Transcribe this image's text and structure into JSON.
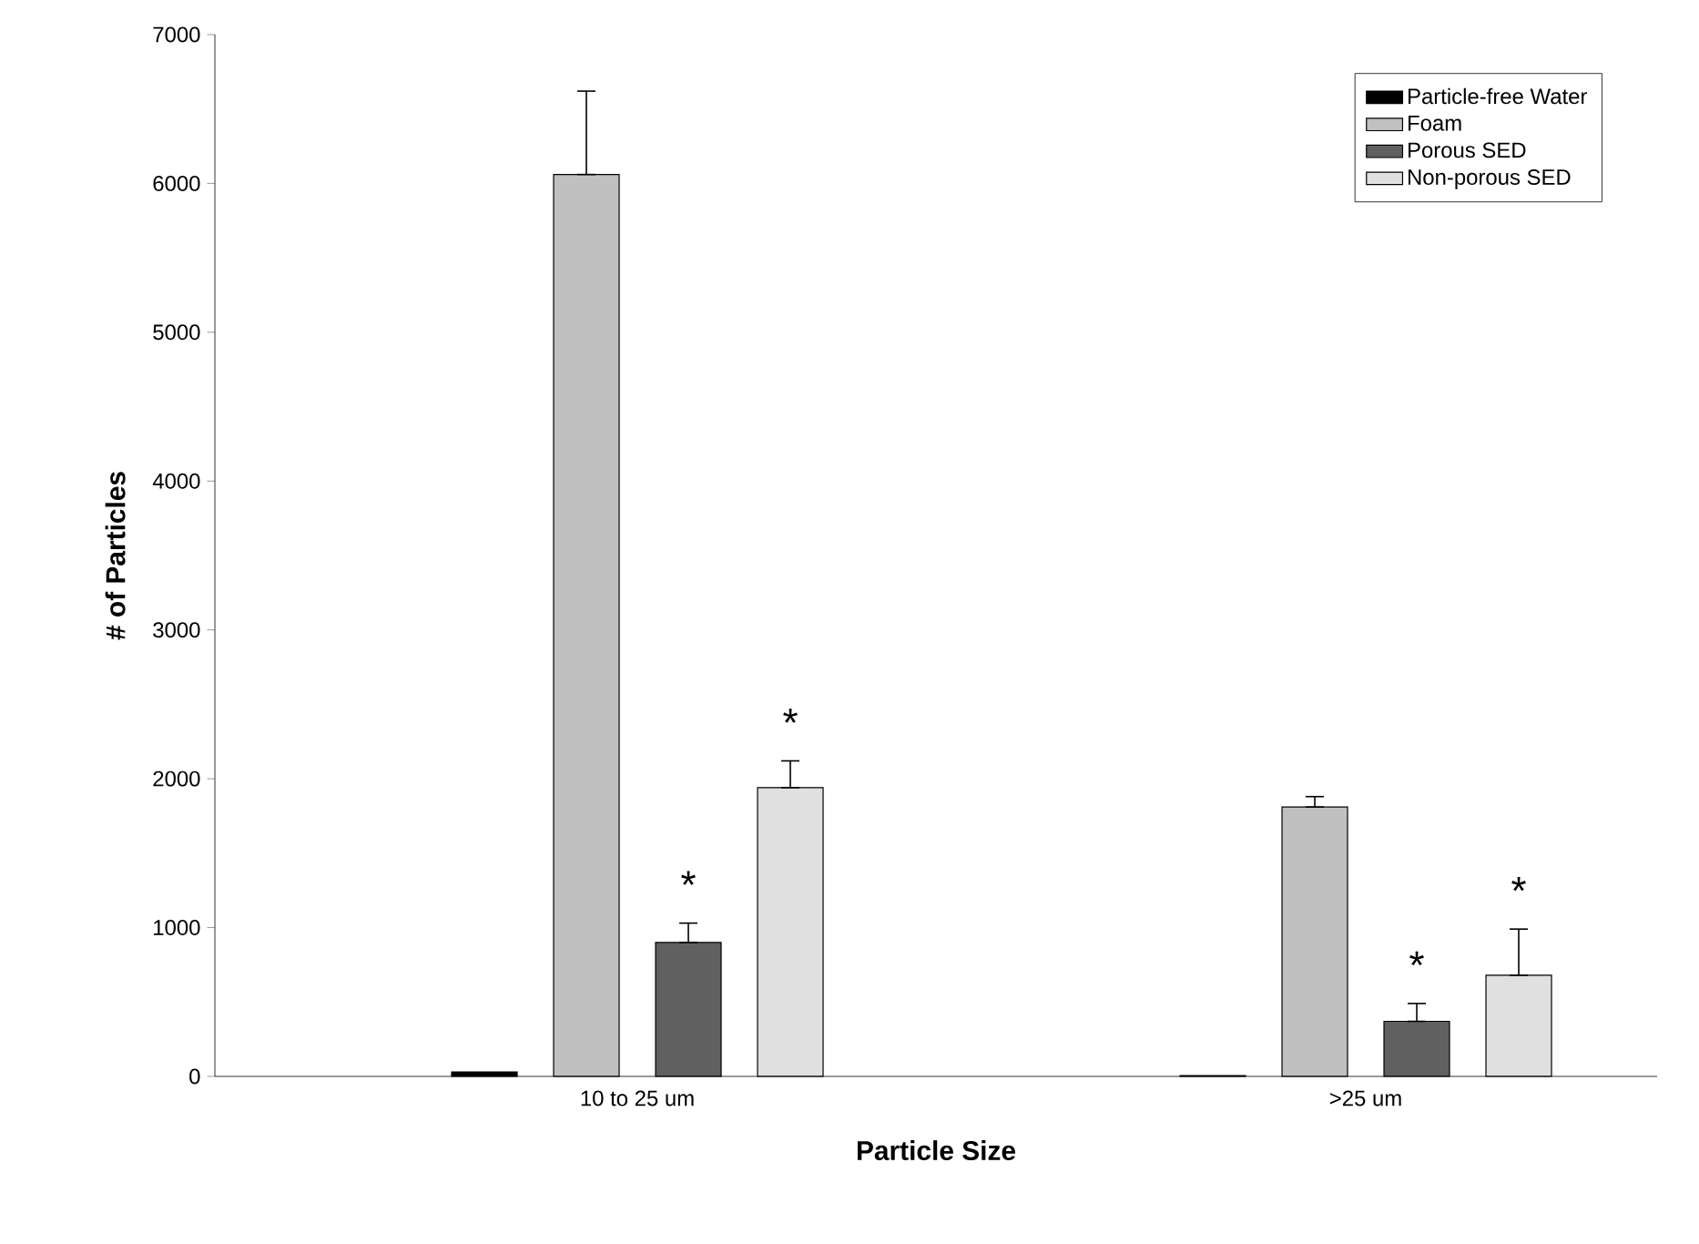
{
  "chart_data": {
    "type": "bar",
    "xlabel": "Particle Size",
    "ylabel": "# of Particles",
    "categories": [
      "10 to 25 um",
      ">25 um"
    ],
    "series": [
      {
        "name": "Particle-free Water",
        "color": "#000000",
        "values": [
          30,
          5
        ]
      },
      {
        "name": "Foam",
        "color": "#c0c0c0",
        "values": [
          6060,
          1810
        ],
        "errors": [
          [
            6060,
            6620
          ],
          [
            1810,
            1880
          ]
        ]
      },
      {
        "name": "Porous SED",
        "color": "#606060",
        "values": [
          900,
          370
        ],
        "errors": [
          [
            900,
            1030
          ],
          [
            370,
            490
          ]
        ]
      },
      {
        "name": "Non-porous SED",
        "color": "#e0e0e0",
        "values": [
          1940,
          680
        ],
        "errors": [
          [
            1940,
            2120
          ],
          [
            680,
            990
          ]
        ]
      }
    ],
    "ylim": [
      0,
      7000
    ],
    "yticks": [
      0,
      1000,
      2000,
      3000,
      4000,
      5000,
      6000,
      7000
    ],
    "legend": "top right",
    "grid": false,
    "annotations": [
      "*",
      "*",
      "*",
      "*"
    ]
  }
}
